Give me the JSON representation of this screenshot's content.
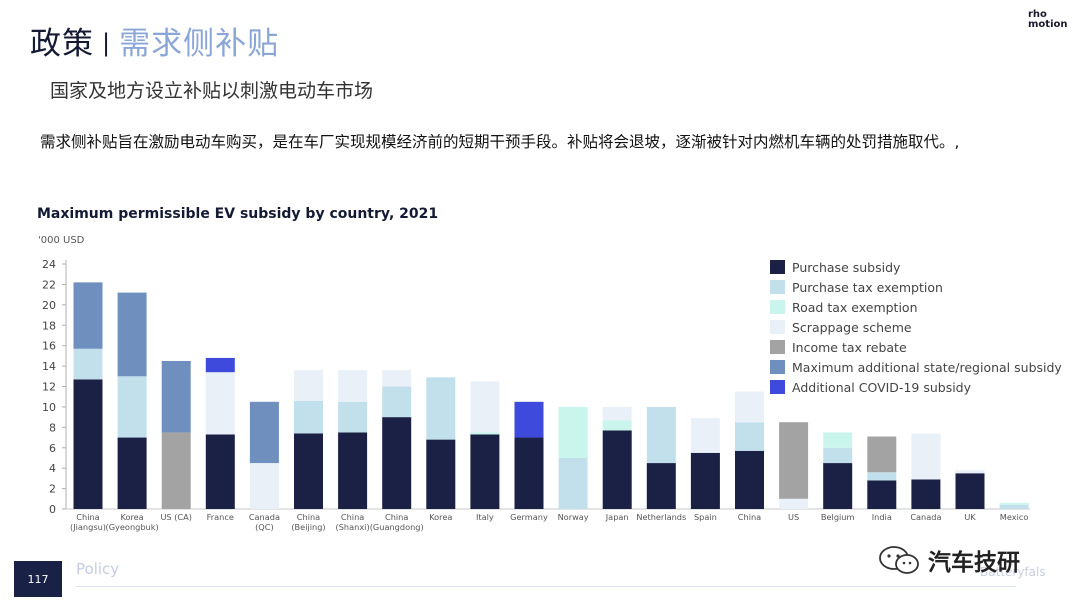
{
  "header": {
    "title_main": "政策",
    "title_sep": "|",
    "title_sub": "需求侧补贴",
    "logo_line1": "rho",
    "logo_line2": "motion"
  },
  "subtitle": "国家及地方设立补贴以刺激电动车市场",
  "paragraph": "需求侧补贴旨在激励电动车购买，是在车厂实现规模经济前的短期干预手段。补贴将会退坡，逐渐被针对内燃机车辆的处罚措施取代。,",
  "chart_title": "Maximum permissible EV subsidy by country, 2021",
  "chart_unit": "'000 USD",
  "footer": {
    "page_number": "117",
    "label": "Policy",
    "watermark": "汽车技研",
    "brand": "Batteryfals"
  },
  "chart_data": {
    "type": "bar",
    "stacked": true,
    "title": "Maximum permissible EV subsidy by country, 2021",
    "ylabel": "'000 USD",
    "ylim": [
      0,
      24
    ],
    "yticks": [
      0,
      2,
      4,
      6,
      8,
      10,
      12,
      14,
      16,
      18,
      20,
      22,
      24
    ],
    "grid": false,
    "legend_position": "top-right",
    "categories": [
      [
        "China",
        "(Jiangsu)"
      ],
      [
        "Korea",
        "(Gyeongbuk)"
      ],
      [
        "US (CA)"
      ],
      [
        "France"
      ],
      [
        "Canada",
        "(QC)"
      ],
      [
        "China",
        "(Beijing)"
      ],
      [
        "China",
        "(Shanxi)"
      ],
      [
        "China",
        "(Guangdong)"
      ],
      [
        "Korea"
      ],
      [
        "Italy"
      ],
      [
        "Germany"
      ],
      [
        "Norway"
      ],
      [
        "Japan"
      ],
      [
        "Netherlands"
      ],
      [
        "Spain"
      ],
      [
        "China"
      ],
      [
        "US"
      ],
      [
        "Belgium"
      ],
      [
        "India"
      ],
      [
        "Canada"
      ],
      [
        "UK"
      ],
      [
        "Mexico"
      ]
    ],
    "series": [
      {
        "name": "Purchase subsidy",
        "color": "#1b2145",
        "values": [
          12.7,
          7.0,
          0,
          7.3,
          0,
          7.4,
          7.5,
          9.0,
          6.8,
          7.3,
          7.0,
          0,
          7.7,
          4.5,
          5.5,
          5.7,
          0,
          4.5,
          2.8,
          2.9,
          3.5,
          0
        ]
      },
      {
        "name": "Purchase tax exemption",
        "color": "#c2e0ec",
        "values": [
          3.0,
          6.0,
          0,
          0,
          0,
          3.2,
          3.0,
          3.0,
          6.1,
          0,
          0,
          5.0,
          0,
          5.5,
          0,
          2.8,
          0,
          1.5,
          0.8,
          0,
          0,
          0.4
        ]
      },
      {
        "name": "Road tax exemption",
        "color": "#c9f5ec",
        "values": [
          0,
          0,
          0,
          0,
          0,
          0,
          0,
          0,
          0,
          0.2,
          0,
          5.0,
          1.0,
          0,
          0,
          0,
          0,
          1.5,
          0,
          0,
          0,
          0.2
        ]
      },
      {
        "name": "Scrappage scheme",
        "color": "#e9f0f8",
        "values": [
          0,
          0,
          0,
          6.1,
          4.5,
          3.0,
          3.1,
          1.6,
          0,
          5.0,
          0,
          0,
          1.3,
          0,
          3.4,
          3.0,
          1.0,
          0,
          0,
          4.5,
          0.3,
          0
        ]
      },
      {
        "name": "Income tax rebate",
        "color": "#a3a3a3",
        "values": [
          0,
          0,
          7.5,
          0,
          0,
          0,
          0,
          0,
          0,
          0,
          0,
          0,
          0,
          0,
          0,
          0,
          7.5,
          0,
          3.5,
          0,
          0,
          0
        ]
      },
      {
        "name": "Maximum additional state/regional subsidy",
        "color": "#6f8fbf",
        "values": [
          6.5,
          8.2,
          7.0,
          0,
          6.0,
          0,
          0,
          0,
          0,
          0,
          0,
          0,
          0,
          0,
          0,
          0,
          0,
          0,
          0,
          0,
          0,
          0
        ]
      },
      {
        "name": "Additional COVID-19 subsidy",
        "color": "#3d4adb",
        "values": [
          0,
          0,
          0,
          1.4,
          0,
          0,
          0,
          0,
          0,
          0,
          3.5,
          0,
          0,
          0,
          0,
          0,
          0,
          0,
          0,
          0,
          0,
          0
        ]
      }
    ]
  }
}
